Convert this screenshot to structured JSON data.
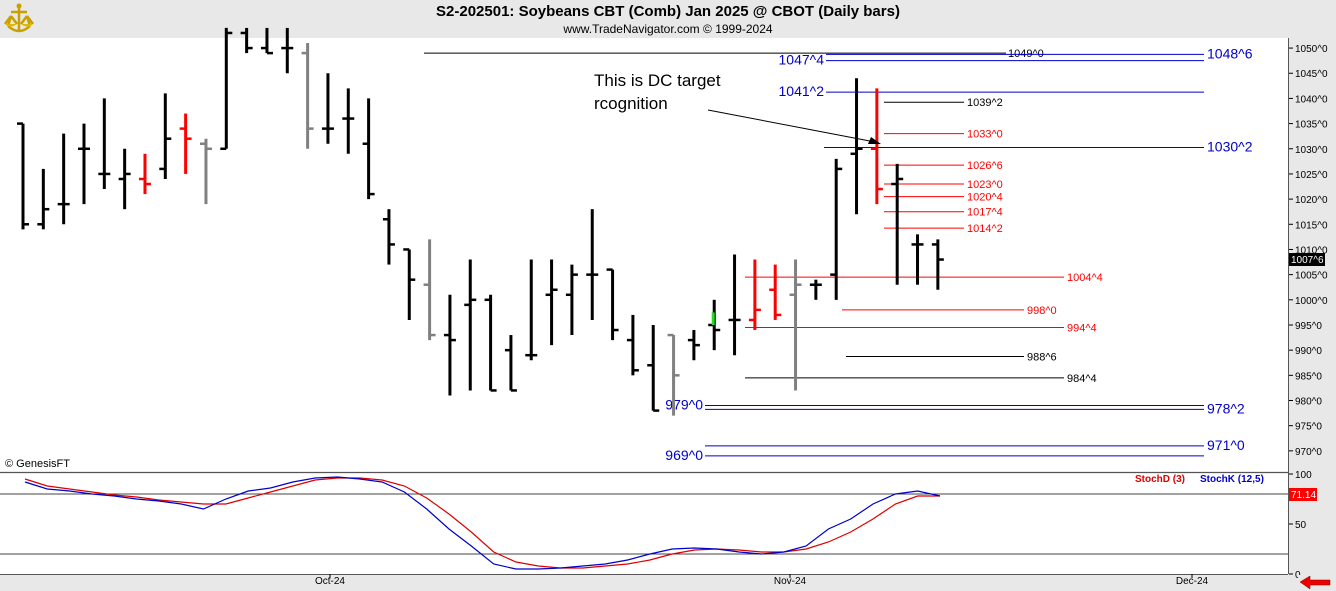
{
  "header": {
    "title": "S2-202501:  Soybeans CBT (Comb) Jan 2025 @ CBOT  (Daily bars)",
    "subtitle": "www.TradeNavigator.com © 1999-2024"
  },
  "watermark": "© GenesisFT",
  "annotation": {
    "line1": "This is DC target",
    "line2": "rcognition"
  },
  "price_axis": {
    "ticks": [
      "1050^0",
      "1045^0",
      "1040^0",
      "1035^0",
      "1030^0",
      "1025^0",
      "1020^0",
      "1015^0",
      "1010^0",
      "1005^0",
      "1000^0",
      "995^0",
      "990^0",
      "985^0",
      "980^0",
      "975^0",
      "970^0"
    ],
    "last_price": "1007^6"
  },
  "stoch_axis": {
    "ticks": [
      "100",
      "50",
      "0"
    ],
    "last_value": "71.14",
    "legend_d": "StochD (3)",
    "legend_k": "StochK (12,5)"
  },
  "time_axis": {
    "labels": [
      "Oct-24",
      "Nov-24",
      "Dec-24"
    ]
  },
  "colors": {
    "up": "#000000",
    "down": "#ff0000",
    "neutral": "#808080",
    "green": "#22dd22",
    "blue_level": "#0000cc",
    "black_level": "#000000",
    "red_level": "#ff0000"
  },
  "chart_data": {
    "type": "ohlc",
    "price_range": [
      966,
      1052
    ],
    "stoch_range": [
      0,
      100
    ],
    "bars": [
      {
        "high": 1035,
        "low": 1014,
        "open": 1035,
        "close": 1015,
        "color": "black"
      },
      {
        "high": 1026,
        "low": 1014,
        "open": 1015,
        "close": 1018,
        "color": "black"
      },
      {
        "high": 1033,
        "low": 1015,
        "open": 1019,
        "close": 1019,
        "color": "black"
      },
      {
        "high": 1035,
        "low": 1019,
        "open": 1030,
        "close": 1030,
        "color": "black"
      },
      {
        "high": 1040,
        "low": 1022,
        "open": 1025,
        "close": 1025,
        "color": "black"
      },
      {
        "high": 1030,
        "low": 1018,
        "open": 1024,
        "close": 1025,
        "color": "black"
      },
      {
        "high": 1029,
        "low": 1021,
        "open": 1024,
        "close": 1023,
        "color": "red"
      },
      {
        "high": 1041,
        "low": 1024,
        "open": 1026,
        "close": 1032,
        "color": "black"
      },
      {
        "high": 1037,
        "low": 1025,
        "open": 1034,
        "close": 1032,
        "color": "red"
      },
      {
        "high": 1032,
        "low": 1019,
        "open": 1031,
        "close": 1030,
        "color": "gray"
      },
      {
        "high": 1054,
        "low": 1030,
        "open": 1030,
        "close": 1053,
        "color": "black"
      },
      {
        "high": 1054,
        "low": 1049,
        "open": 1053,
        "close": 1050,
        "color": "black"
      },
      {
        "high": 1054,
        "low": 1049,
        "open": 1050,
        "close": 1049,
        "color": "black"
      },
      {
        "high": 1054,
        "low": 1045,
        "open": 1050,
        "close": 1050,
        "color": "black"
      },
      {
        "high": 1051,
        "low": 1030,
        "open": 1049,
        "close": 1034,
        "color": "gray"
      },
      {
        "high": 1045,
        "low": 1031,
        "open": 1034,
        "close": 1034,
        "color": "black"
      },
      {
        "high": 1042,
        "low": 1029,
        "open": 1036,
        "close": 1036,
        "color": "black"
      },
      {
        "high": 1040,
        "low": 1020,
        "open": 1031,
        "close": 1021,
        "color": "black"
      },
      {
        "high": 1018,
        "low": 1007,
        "open": 1016,
        "close": 1011,
        "color": "black"
      },
      {
        "high": 1010,
        "low": 996,
        "open": 1010,
        "close": 1004,
        "color": "black"
      },
      {
        "high": 1012,
        "low": 992,
        "open": 1003,
        "close": 993,
        "color": "gray"
      },
      {
        "high": 1001,
        "low": 981,
        "open": 993,
        "close": 992,
        "color": "black"
      },
      {
        "high": 1008,
        "low": 982,
        "open": 999,
        "close": 1000,
        "color": "black"
      },
      {
        "high": 1001,
        "low": 982,
        "open": 1000,
        "close": 982,
        "color": "black"
      },
      {
        "high": 993,
        "low": 982,
        "open": 990,
        "close": 982,
        "color": "black"
      },
      {
        "high": 1008,
        "low": 988,
        "open": 989,
        "close": 989,
        "color": "black"
      },
      {
        "high": 1008,
        "low": 991,
        "open": 1001,
        "close": 1002,
        "color": "black"
      },
      {
        "high": 1007,
        "low": 993,
        "open": 1001,
        "close": 1005,
        "color": "black"
      },
      {
        "high": 1018,
        "low": 996,
        "open": 1005,
        "close": 1005,
        "color": "black"
      },
      {
        "high": 1006,
        "low": 992,
        "open": 1006,
        "close": 994,
        "color": "black"
      },
      {
        "high": 997,
        "low": 985,
        "open": 992,
        "close": 986,
        "color": "black"
      },
      {
        "high": 995,
        "low": 978,
        "open": 987,
        "close": 978,
        "color": "black"
      },
      {
        "high": 993,
        "low": 977,
        "open": 993,
        "close": 985,
        "color": "gray"
      },
      {
        "high": 994,
        "low": 988,
        "open": 992,
        "close": 991,
        "color": "black"
      },
      {
        "high": 1000,
        "low": 990,
        "open": 995,
        "close": 994,
        "color": "black"
      },
      {
        "high": 1009,
        "low": 989,
        "open": 996,
        "close": 996,
        "color": "black"
      },
      {
        "high": 1008,
        "low": 994,
        "open": 996,
        "close": 998,
        "color": "red"
      },
      {
        "high": 1007,
        "low": 996,
        "open": 1002,
        "close": 997,
        "color": "red"
      },
      {
        "high": 1008,
        "low": 982,
        "open": 1001,
        "close": 1003,
        "color": "gray"
      },
      {
        "high": 1004,
        "low": 1000,
        "open": 1003,
        "close": 1003,
        "color": "black"
      },
      {
        "high": 1028,
        "low": 1000,
        "open": 1005,
        "close": 1026,
        "color": "black"
      },
      {
        "high": 1044,
        "low": 1017,
        "open": 1029,
        "close": 1030,
        "color": "black"
      },
      {
        "high": 1042,
        "low": 1019,
        "open": 1030,
        "close": 1022,
        "color": "red"
      },
      {
        "high": 1027,
        "low": 1003,
        "open": 1023,
        "close": 1024,
        "color": "black"
      },
      {
        "high": 1013,
        "low": 1003,
        "open": 1011,
        "close": 1011,
        "color": "black"
      },
      {
        "high": 1012,
        "low": 1002,
        "open": 1011,
        "close": 1008,
        "color": "black"
      }
    ],
    "levels": [
      {
        "price": 1049.0,
        "label": "1049^0",
        "color": "black_level",
        "label_side": "right"
      },
      {
        "price": 1047.5,
        "label": "1047^4",
        "color": "blue_level",
        "label_side": "left"
      },
      {
        "price": 1048.75,
        "label": "1048^6",
        "color": "blue_level",
        "label_side": "far"
      },
      {
        "price": 1041.25,
        "label": "1041^2",
        "color": "blue_level",
        "label_side": "left"
      },
      {
        "price": 1039.25,
        "label": "1039^2",
        "color": "black_level",
        "label_side": "right"
      },
      {
        "price": 1033.0,
        "label": "1033^0",
        "color": "red_level",
        "label_side": "right"
      },
      {
        "price": 1030.25,
        "label": "1030^2",
        "color": "blue_level",
        "label_side": "far"
      },
      {
        "price": 1026.75,
        "label": "1026^6",
        "color": "red_level",
        "label_side": "right"
      },
      {
        "price": 1023.0,
        "label": "1023^0",
        "color": "red_level",
        "label_side": "right"
      },
      {
        "price": 1020.5,
        "label": "1020^4",
        "color": "red_level",
        "label_side": "right"
      },
      {
        "price": 1017.5,
        "label": "1017^4",
        "color": "red_level",
        "label_side": "right"
      },
      {
        "price": 1014.25,
        "label": "1014^2",
        "color": "red_level",
        "label_side": "right"
      },
      {
        "price": 1004.5,
        "label": "1004^4",
        "color": "red_level",
        "label_side": "right"
      },
      {
        "price": 998.0,
        "label": "998^0",
        "color": "red_level",
        "label_side": "right"
      },
      {
        "price": 994.5,
        "label": "994^4",
        "color": "red_level",
        "label_side": "right"
      },
      {
        "price": 988.75,
        "label": "988^6",
        "color": "black_level",
        "label_side": "right"
      },
      {
        "price": 984.5,
        "label": "984^4",
        "color": "black_level",
        "label_side": "right"
      },
      {
        "price": 979.0,
        "label": "979^0",
        "color": "blue_level",
        "label_side": "left"
      },
      {
        "price": 978.25,
        "label": "978^2",
        "color": "blue_level",
        "label_side": "far"
      },
      {
        "price": 971.0,
        "label": "971^0",
        "color": "blue_level",
        "label_side": "far"
      },
      {
        "price": 969.0,
        "label": "969^0",
        "color": "blue_level",
        "label_side": "left"
      }
    ],
    "stoch_k": [
      92,
      85,
      83,
      80,
      78,
      75,
      73,
      70,
      65,
      75,
      83,
      86,
      92,
      96,
      97,
      95,
      92,
      82,
      65,
      45,
      28,
      10,
      5,
      5,
      6,
      8,
      10,
      14,
      20,
      25,
      26,
      25,
      22,
      20,
      22,
      28,
      45,
      55,
      70,
      80,
      83,
      78
    ],
    "stoch_d": [
      95,
      88,
      85,
      82,
      79,
      77,
      74,
      72,
      70,
      70,
      76,
      82,
      88,
      94,
      96,
      96,
      94,
      88,
      76,
      60,
      42,
      22,
      12,
      8,
      6,
      6,
      8,
      10,
      14,
      20,
      24,
      25,
      24,
      22,
      22,
      25,
      32,
      42,
      55,
      70,
      78,
      78
    ]
  }
}
